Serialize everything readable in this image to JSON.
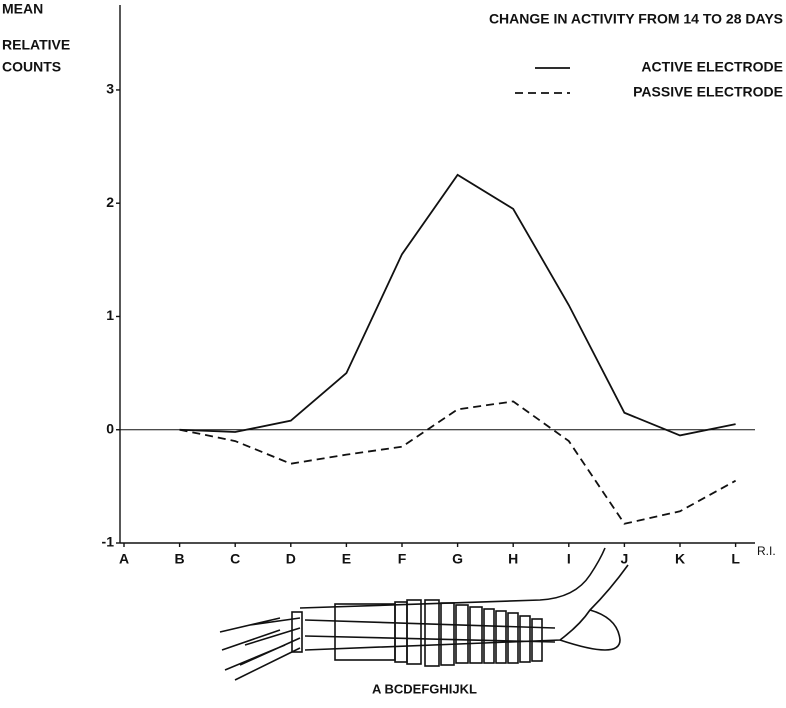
{
  "chart_data": {
    "type": "line",
    "title": "CHANGE IN ACTIVITY FROM 14 TO 28 DAYS",
    "y_label": [
      "MEAN",
      "RELATIVE",
      "COUNTS"
    ],
    "x_label": "R.I.",
    "categories": [
      "A",
      "B",
      "C",
      "D",
      "E",
      "F",
      "G",
      "H",
      "I",
      "J",
      "K",
      "L"
    ],
    "series": [
      {
        "name": "ACTIVE ELECTRODE",
        "color": "#111111",
        "dash": "solid",
        "values": [
          null,
          0,
          -0.02,
          0.08,
          0.5,
          1.55,
          2.25,
          1.95,
          1.1,
          0.15,
          -0.05,
          0.05
        ]
      },
      {
        "name": "PASSIVE ELECTRODE",
        "color": "#111111",
        "dash": "dashed",
        "values": [
          null,
          0,
          -0.1,
          -0.3,
          -0.22,
          -0.15,
          0.18,
          0.25,
          -0.1,
          -0.83,
          -0.72,
          -0.45
        ]
      }
    ],
    "ylim": [
      -1,
      3.75
    ],
    "yticks": [
      -1,
      0,
      1,
      2,
      3
    ],
    "diagram_label": "A  BCDEFGHIJKL"
  }
}
